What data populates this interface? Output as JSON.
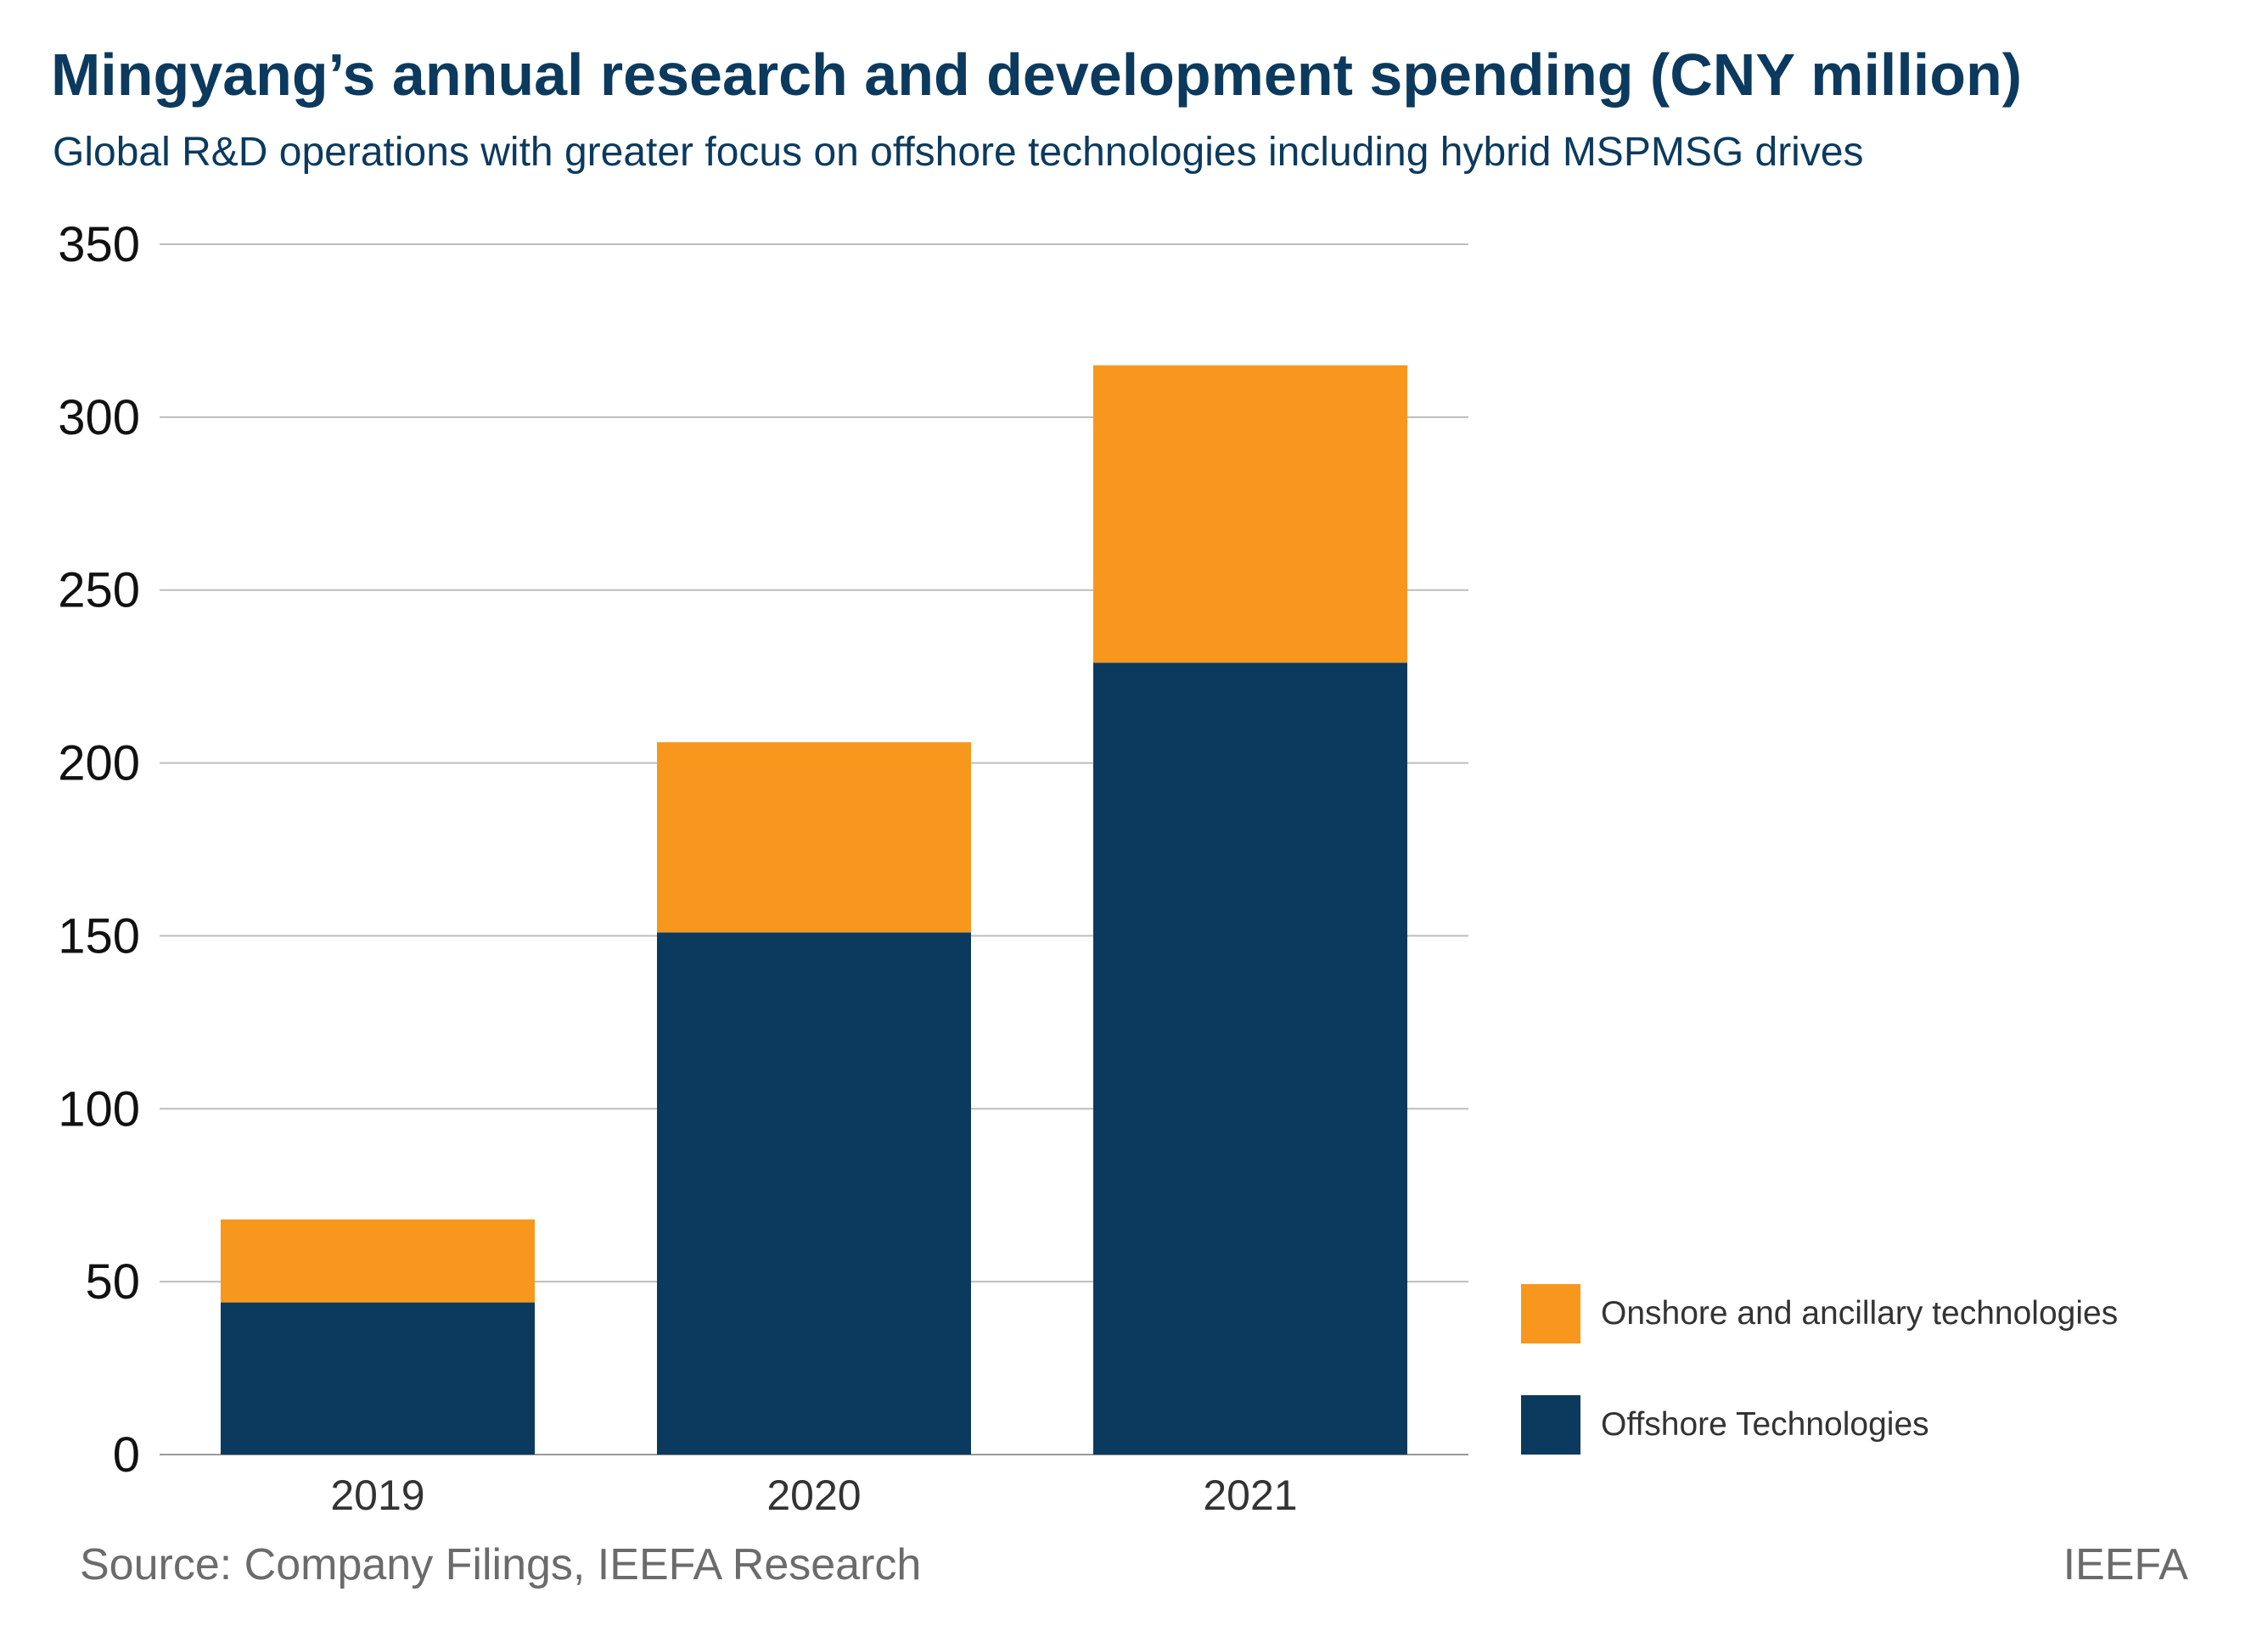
{
  "chart_data": {
    "type": "bar",
    "stacked": true,
    "title": "Mingyang’s annual research and development spending (CNY million)",
    "subtitle": "Global R&D operations with greater focus on offshore technologies including hybrid MSPMSG drives",
    "categories": [
      "2019",
      "2020",
      "2021"
    ],
    "series": [
      {
        "name": "Offshore Technologies",
        "color": "#0b3a5e",
        "values": [
          44,
          151,
          229
        ]
      },
      {
        "name": "Onshore and ancillary technologies",
        "color": "#f7971e",
        "values": [
          24,
          55,
          86
        ]
      }
    ],
    "legend_order": [
      "Onshore and ancillary technologies",
      "Offshore Technologies"
    ],
    "ylim": [
      0,
      350
    ],
    "yticks": [
      "0",
      "50",
      "100",
      "150",
      "200",
      "250",
      "300",
      "350"
    ],
    "xlabel": "",
    "ylabel": "",
    "grid": true,
    "legend_position": "bottom-right",
    "source": "Source: Company Filings, IEEFA Research",
    "brand": "IEEFA"
  }
}
